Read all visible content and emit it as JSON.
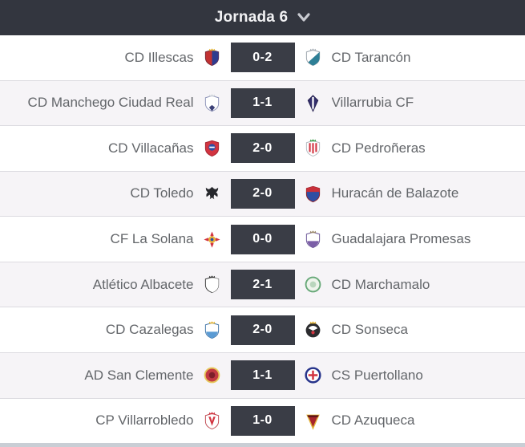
{
  "header": {
    "title": "Jornada 6",
    "chevron_icon": "chevron-down"
  },
  "colors": {
    "header_bg": "#33363f",
    "score_bg": "#3a3d46",
    "row_alt_bg": "#f6f4f7",
    "separator": "#dcdbe0",
    "team_text": "#63666a",
    "score_text": "#ffffff",
    "footer_strip": "#c9ced5"
  },
  "matches": [
    {
      "home": {
        "name": "CD Illescas",
        "crest": {
          "shape": "shield",
          "colors": [
            "#c23232",
            "#2f3c8f",
            "#7a2430"
          ],
          "crown": "#e3b53a"
        }
      },
      "score": "0-2",
      "away": {
        "name": "CD Tarancón",
        "crest": {
          "shape": "shield-diag",
          "colors": [
            "#ffffff",
            "#2e7f96",
            "#9aa3ab"
          ],
          "crown": "#aab2b9"
        }
      }
    },
    {
      "home": {
        "name": "CD Manchego Ciudad Real",
        "crest": {
          "shape": "shield-tip",
          "colors": [
            "#ffffff",
            "#3c4077",
            "#8d93b8"
          ],
          "crown": "#cdd1da"
        }
      },
      "score": "1-1",
      "away": {
        "name": "Villarrubia CF",
        "crest": {
          "shape": "kite",
          "colors": [
            "#332e6b",
            "#ffffff",
            "#221d4e"
          ]
        }
      }
    },
    {
      "home": {
        "name": "CD Villacañas",
        "crest": {
          "shape": "shield-emblem",
          "colors": [
            "#d23440",
            "#2b4ea5",
            "#a32531"
          ]
        }
      },
      "score": "2-0",
      "away": {
        "name": "CD Pedroñeras",
        "crest": {
          "shape": "shield-stripes",
          "colors": [
            "#ffffff",
            "#d23440",
            "#b4bac0"
          ],
          "crown": "#3f9e4d"
        }
      }
    },
    {
      "home": {
        "name": "CD Toledo",
        "crest": {
          "shape": "bird",
          "colors": [
            "#26272c"
          ]
        }
      },
      "score": "2-0",
      "away": {
        "name": "Huracán de Balazote",
        "crest": {
          "shape": "shield-band",
          "colors": [
            "#2e4ea3",
            "#c8303a",
            "#8f1f27"
          ]
        }
      }
    },
    {
      "home": {
        "name": "CF La Solana",
        "crest": {
          "shape": "cross-star",
          "colors": [
            "#e8b33c",
            "#d23440",
            "#2b4ea5"
          ]
        }
      },
      "score": "0-0",
      "away": {
        "name": "Guadalajara Promesas",
        "crest": {
          "shape": "shield-band-bottom",
          "colors": [
            "#ffffff",
            "#7b5ea7",
            "#6a5496"
          ],
          "crown": "#9c8a6b"
        }
      }
    },
    {
      "home": {
        "name": "Atlético Albacete",
        "crest": {
          "shape": "shield",
          "colors": [
            "#ffffff",
            "#ffffff",
            "#3a3a3a"
          ],
          "crown": "#3a3a3a"
        }
      },
      "score": "2-1",
      "away": {
        "name": "CD Marchamalo",
        "crest": {
          "shape": "circle",
          "colors": [
            "#eef4ec",
            "#67a878",
            "#b9d6bd"
          ]
        }
      }
    },
    {
      "home": {
        "name": "CD Cazalegas",
        "crest": {
          "shape": "shield-band-bottom",
          "colors": [
            "#ffffff",
            "#5a9bd4",
            "#3f74a8"
          ],
          "crown": "#e3b53a"
        }
      },
      "score": "2-0",
      "away": {
        "name": "CD Sonseca",
        "crest": {
          "shape": "ball",
          "colors": [
            "#2b2b2e",
            "#ffffff",
            "#d23440"
          ],
          "crown": "#e3b53a"
        }
      }
    },
    {
      "home": {
        "name": "AD San Clemente",
        "crest": {
          "shape": "circle",
          "colors": [
            "#c23a42",
            "#e6c75a",
            "#7c1f2a"
          ]
        }
      },
      "score": "1-1",
      "away": {
        "name": "CS Puertollano",
        "crest": {
          "shape": "circle-cross",
          "colors": [
            "#ffffff",
            "#27348b",
            "#d23440"
          ]
        }
      }
    },
    {
      "home": {
        "name": "CP Villarrobledo",
        "crest": {
          "shape": "shield-v",
          "colors": [
            "#ffffff",
            "#d23440",
            "#c04a52"
          ],
          "crown": "#d23440"
        }
      },
      "score": "1-0",
      "away": {
        "name": "CD Azuqueca",
        "crest": {
          "shape": "triangle",
          "colors": [
            "#a8242b",
            "#e3b53a",
            "#5e1317"
          ]
        }
      }
    }
  ]
}
